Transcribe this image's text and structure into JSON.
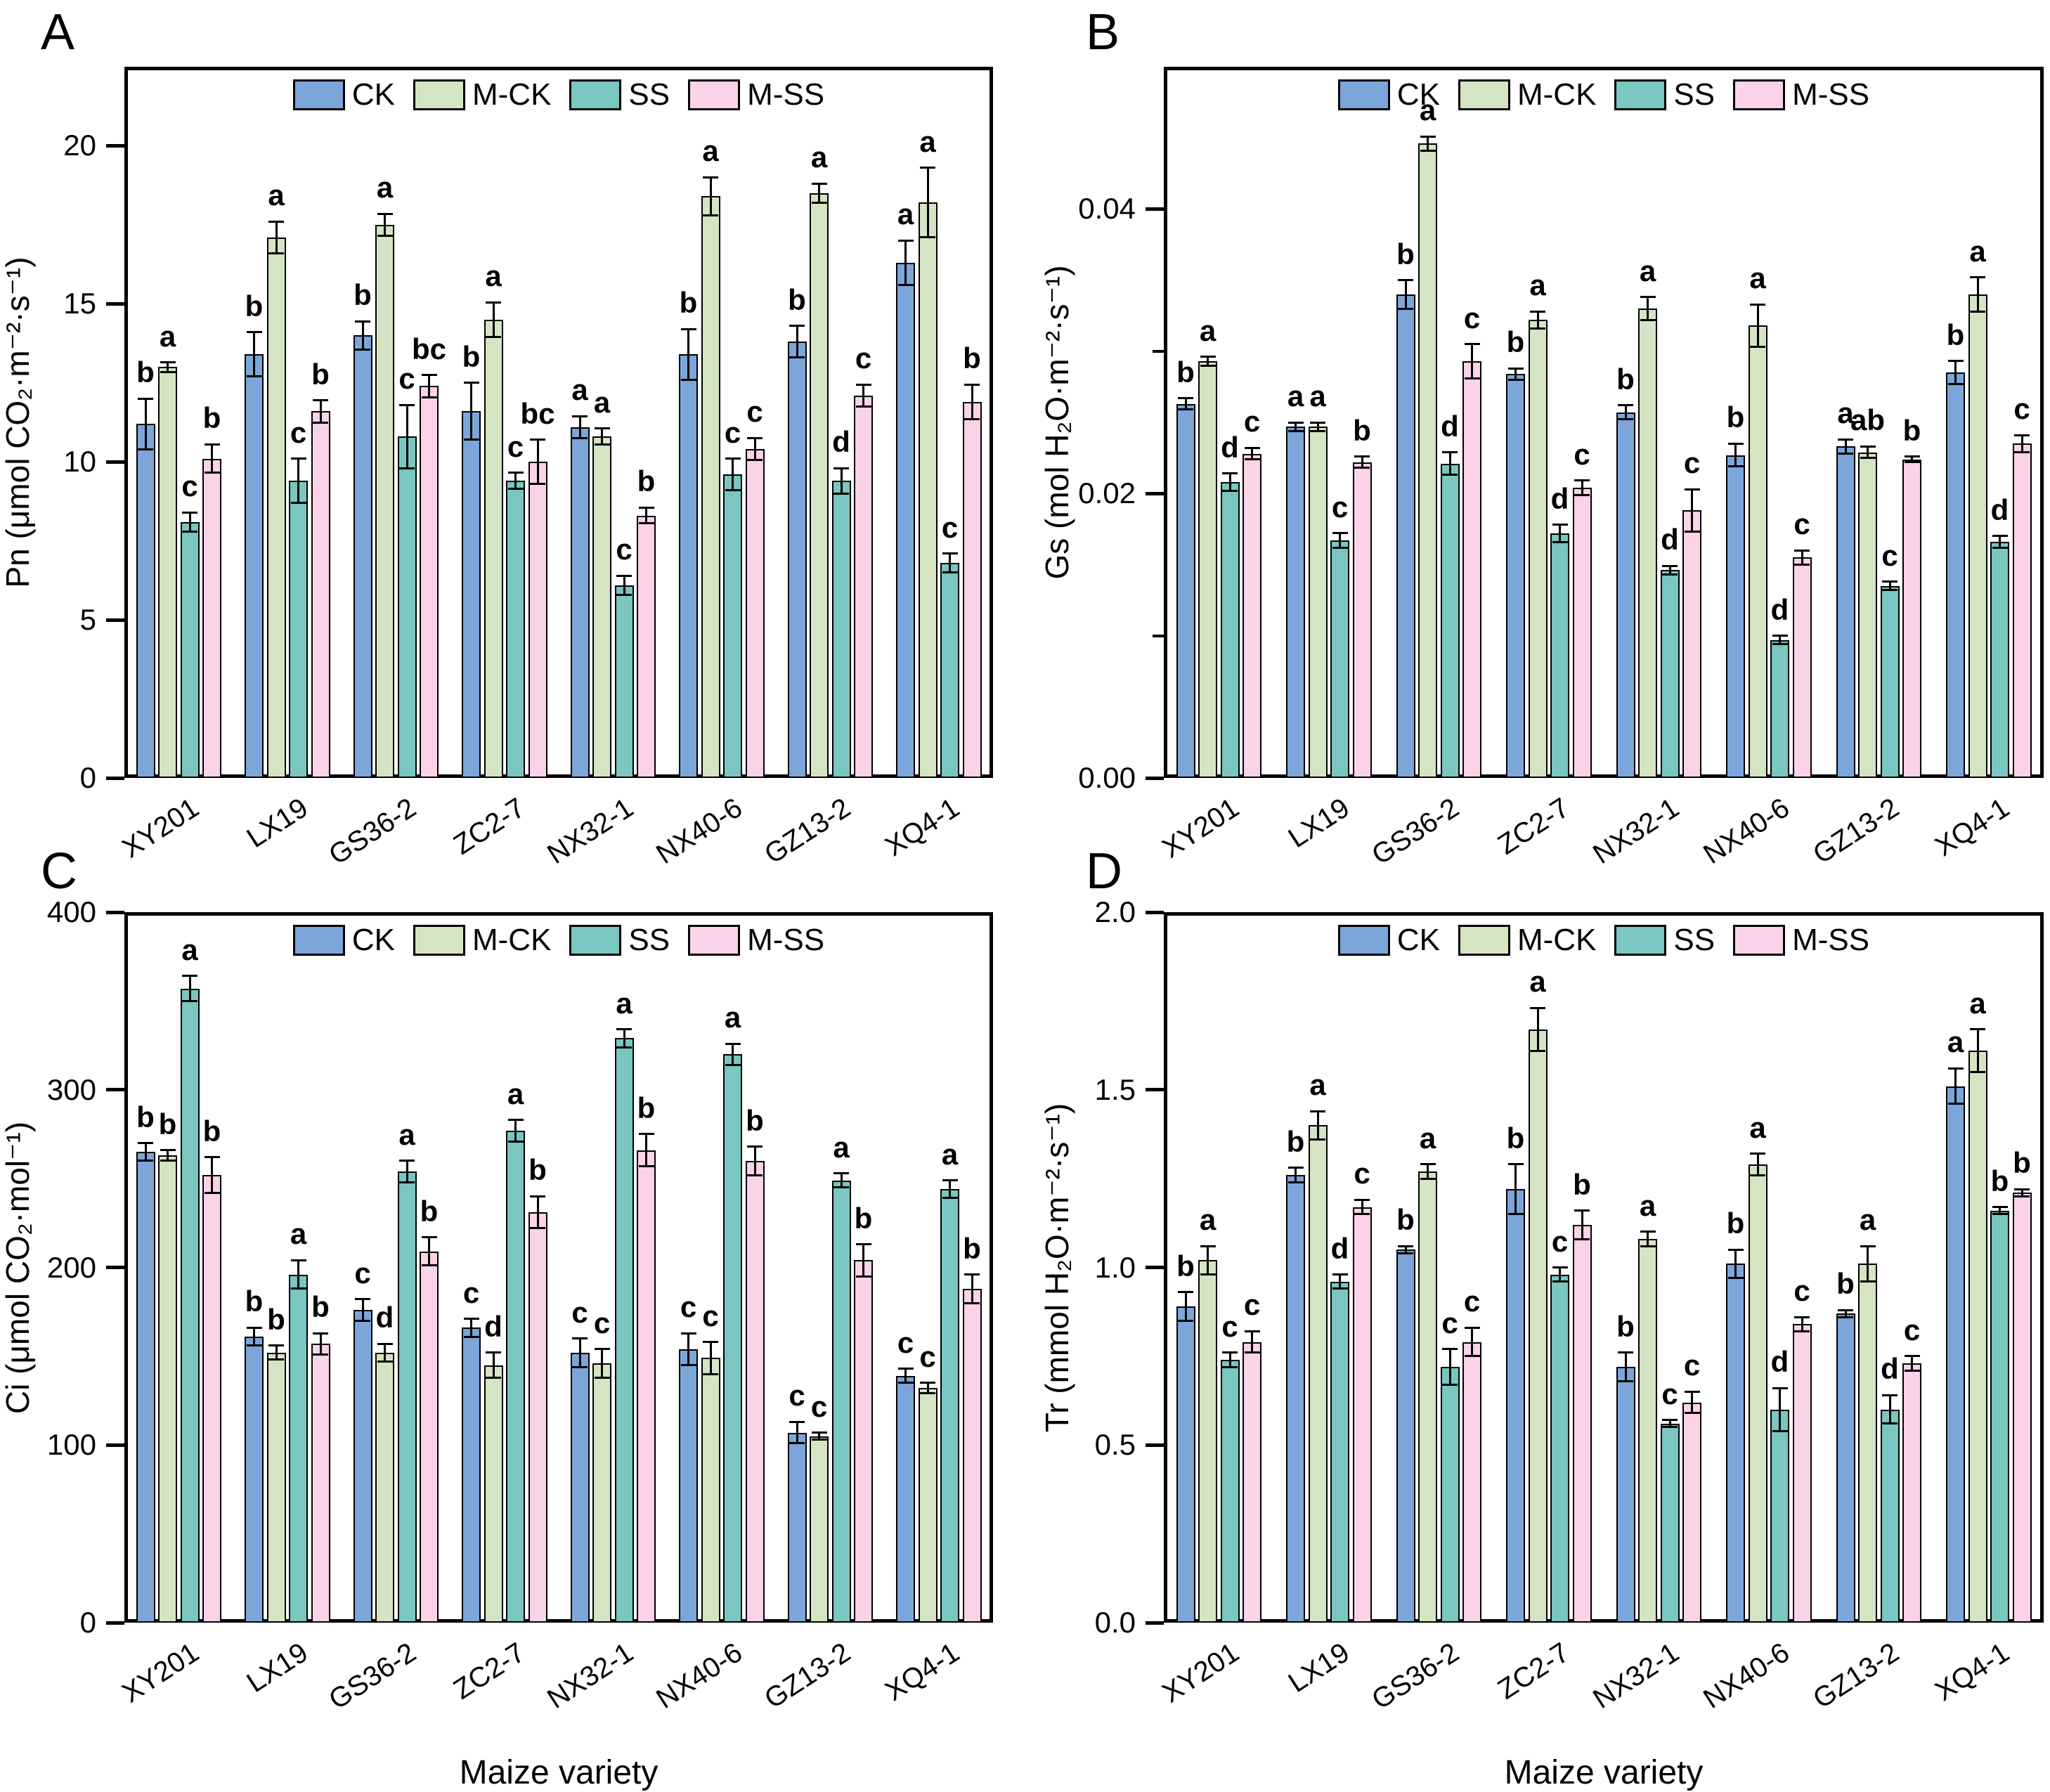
{
  "chart_data": {
    "type": "bar",
    "layout": "2x2-multipanel-grouped-bar",
    "categories": [
      "XY201",
      "LX19",
      "GS36-2",
      "ZC2-7",
      "NX32-1",
      "NX40-6",
      "GZ13-2",
      "XQ4-1"
    ],
    "treatments": [
      {
        "label": "CK",
        "color": "#7CA6D9"
      },
      {
        "label": "M-CK",
        "color": "#D5E5C4"
      },
      {
        "label": "SS",
        "color": "#7AC6C0"
      },
      {
        "label": "M-SS",
        "color": "#FAD3E9"
      }
    ],
    "xlabel": "Maize variety",
    "legend_position": "top-center-inside",
    "grid": "off",
    "panels": [
      {
        "panel": "A",
        "ylabel": "Pn (μmol CO₂·m⁻²·s⁻¹)",
        "ylim": [
          0,
          22.5
        ],
        "yticks": [
          0,
          5,
          10,
          15,
          20
        ],
        "ytick_labels": [
          "0",
          "5",
          "10",
          "15",
          "20"
        ],
        "minor_yticks": [],
        "show_xlabel": false,
        "series": [
          {
            "name": "CK",
            "values": [
              11.2,
              13.4,
              14.0,
              11.6,
              11.1,
              13.4,
              13.8,
              16.3
            ],
            "errors": [
              0.8,
              0.7,
              0.45,
              0.9,
              0.35,
              0.8,
              0.5,
              0.7
            ],
            "letters": [
              "b",
              "b",
              "b",
              "b",
              "a",
              "b",
              "b",
              "a"
            ]
          },
          {
            "name": "M-CK",
            "values": [
              13.0,
              17.1,
              17.5,
              14.5,
              10.8,
              18.4,
              18.5,
              18.2
            ],
            "errors": [
              0.15,
              0.5,
              0.35,
              0.55,
              0.25,
              0.6,
              0.3,
              1.1
            ],
            "letters": [
              "a",
              "a",
              "a",
              "a",
              "a",
              "a",
              "a",
              "a"
            ]
          },
          {
            "name": "SS",
            "values": [
              8.1,
              9.4,
              10.8,
              9.4,
              6.1,
              9.6,
              9.4,
              6.8
            ],
            "errors": [
              0.3,
              0.7,
              1.0,
              0.25,
              0.3,
              0.5,
              0.4,
              0.3
            ],
            "letters": [
              "c",
              "c",
              "c",
              "c",
              "c",
              "c",
              "d",
              "c"
            ]
          },
          {
            "name": "M-SS",
            "values": [
              10.1,
              11.6,
              12.4,
              10.0,
              8.3,
              10.4,
              12.1,
              11.9
            ],
            "errors": [
              0.45,
              0.35,
              0.35,
              0.7,
              0.25,
              0.35,
              0.35,
              0.55
            ],
            "letters": [
              "b",
              "b",
              "bc",
              "bc",
              "b",
              "c",
              "c",
              "b"
            ]
          }
        ]
      },
      {
        "panel": "B",
        "ylabel": "Gs (mol H₂O·m⁻²·s⁻¹)",
        "ylim": [
          0,
          0.05
        ],
        "yticks": [
          0,
          0.02,
          0.04
        ],
        "ytick_labels": [
          "0.00",
          "0.02",
          "0.04"
        ],
        "minor_yticks": [
          0.01,
          0.03
        ],
        "show_xlabel": false,
        "series": [
          {
            "name": "CK",
            "values": [
              0.0263,
              0.0247,
              0.034,
              0.0284,
              0.0257,
              0.0227,
              0.0233,
              0.0285
            ],
            "errors": [
              0.0004,
              0.0003,
              0.001,
              0.0004,
              0.0005,
              0.0008,
              0.0005,
              0.0008
            ],
            "letters": [
              "b",
              "a",
              "b",
              "b",
              "b",
              "b",
              "a",
              "b"
            ]
          },
          {
            "name": "M-CK",
            "values": [
              0.0293,
              0.0247,
              0.0446,
              0.0322,
              0.033,
              0.0318,
              0.0229,
              0.034
            ],
            "errors": [
              0.0003,
              0.0003,
              0.0005,
              0.0006,
              0.0008,
              0.0015,
              0.0004,
              0.0012
            ],
            "letters": [
              "a",
              "a",
              "a",
              "a",
              "a",
              "a",
              "ab",
              "a"
            ]
          },
          {
            "name": "SS",
            "values": [
              0.0208,
              0.0167,
              0.0221,
              0.0172,
              0.0146,
              0.0097,
              0.0135,
              0.0166
            ],
            "errors": [
              0.0006,
              0.0005,
              0.0008,
              0.0006,
              0.0003,
              0.0003,
              0.0003,
              0.0004
            ],
            "letters": [
              "d",
              "c",
              "d",
              "d",
              "d",
              "d",
              "c",
              "d"
            ]
          },
          {
            "name": "M-SS",
            "values": [
              0.0228,
              0.0222,
              0.0293,
              0.0204,
              0.0188,
              0.0155,
              0.0224,
              0.0235
            ],
            "errors": [
              0.0004,
              0.0004,
              0.0012,
              0.0005,
              0.0015,
              0.0005,
              0.0002,
              0.0006
            ],
            "letters": [
              "c",
              "b",
              "c",
              "c",
              "c",
              "c",
              "b",
              "c"
            ]
          }
        ]
      },
      {
        "panel": "C",
        "ylabel": "Ci (μmol CO₂·mol⁻¹)",
        "ylim": [
          0,
          400
        ],
        "yticks": [
          0,
          100,
          200,
          300,
          400
        ],
        "ytick_labels": [
          "0",
          "100",
          "200",
          "300",
          "400"
        ],
        "minor_yticks": [],
        "show_xlabel": true,
        "series": [
          {
            "name": "CK",
            "values": [
              265,
              161,
              176,
              166,
              152,
              154,
              107,
              139
            ],
            "errors": [
              5,
              5,
              6,
              5,
              8,
              9,
              6,
              4
            ],
            "letters": [
              "b",
              "b",
              "c",
              "c",
              "c",
              "c",
              "c",
              "c"
            ]
          },
          {
            "name": "M-CK",
            "values": [
              263,
              152,
              152,
              145,
              146,
              149,
              105,
              132
            ],
            "errors": [
              3,
              4,
              5,
              7,
              8,
              9,
              2,
              3
            ],
            "letters": [
              "b",
              "b",
              "d",
              "d",
              "c",
              "c",
              "c",
              "c"
            ]
          },
          {
            "name": "SS",
            "values": [
              357,
              196,
              254,
              277,
              329,
              320,
              249,
              244
            ],
            "errors": [
              7,
              8,
              6,
              6,
              5,
              6,
              4,
              5
            ],
            "letters": [
              "a",
              "a",
              "a",
              "a",
              "a",
              "a",
              "a",
              "a"
            ]
          },
          {
            "name": "M-SS",
            "values": [
              252,
              157,
              209,
              231,
              266,
              260,
              204,
              188
            ],
            "errors": [
              10,
              6,
              8,
              9,
              9,
              8,
              9,
              8
            ],
            "letters": [
              "b",
              "b",
              "b",
              "b",
              "b",
              "b",
              "b",
              "b"
            ]
          }
        ]
      },
      {
        "panel": "D",
        "ylabel": "Tr (mmol H₂O·m⁻²·s⁻¹)",
        "ylim": [
          0,
          2.0
        ],
        "yticks": [
          0,
          0.5,
          1.0,
          1.5,
          2.0
        ],
        "ytick_labels": [
          "0.0",
          "0.5",
          "1.0",
          "1.5",
          "2.0"
        ],
        "minor_yticks": [],
        "show_xlabel": true,
        "series": [
          {
            "name": "CK",
            "values": [
              0.89,
              1.26,
              1.05,
              1.22,
              0.72,
              1.01,
              0.87,
              1.51
            ],
            "errors": [
              0.04,
              0.02,
              0.01,
              0.07,
              0.04,
              0.04,
              0.01,
              0.05
            ],
            "letters": [
              "b",
              "b",
              "b",
              "b",
              "b",
              "b",
              "b",
              "a"
            ]
          },
          {
            "name": "M-CK",
            "values": [
              1.02,
              1.4,
              1.27,
              1.67,
              1.08,
              1.29,
              1.01,
              1.61
            ],
            "errors": [
              0.04,
              0.04,
              0.02,
              0.06,
              0.02,
              0.03,
              0.05,
              0.06
            ],
            "letters": [
              "a",
              "a",
              "a",
              "a",
              "a",
              "a",
              "a",
              "a"
            ]
          },
          {
            "name": "SS",
            "values": [
              0.74,
              0.96,
              0.72,
              0.98,
              0.56,
              0.6,
              0.6,
              1.16
            ],
            "errors": [
              0.02,
              0.02,
              0.05,
              0.02,
              0.01,
              0.06,
              0.04,
              0.01
            ],
            "letters": [
              "c",
              "d",
              "c",
              "c",
              "c",
              "d",
              "d",
              "b"
            ]
          },
          {
            "name": "M-SS",
            "values": [
              0.79,
              1.17,
              0.79,
              1.12,
              0.62,
              0.84,
              0.73,
              1.21
            ],
            "errors": [
              0.03,
              0.02,
              0.04,
              0.04,
              0.03,
              0.02,
              0.02,
              0.01
            ],
            "letters": [
              "c",
              "c",
              "c",
              "b",
              "c",
              "c",
              "c",
              "b"
            ]
          }
        ]
      }
    ]
  }
}
